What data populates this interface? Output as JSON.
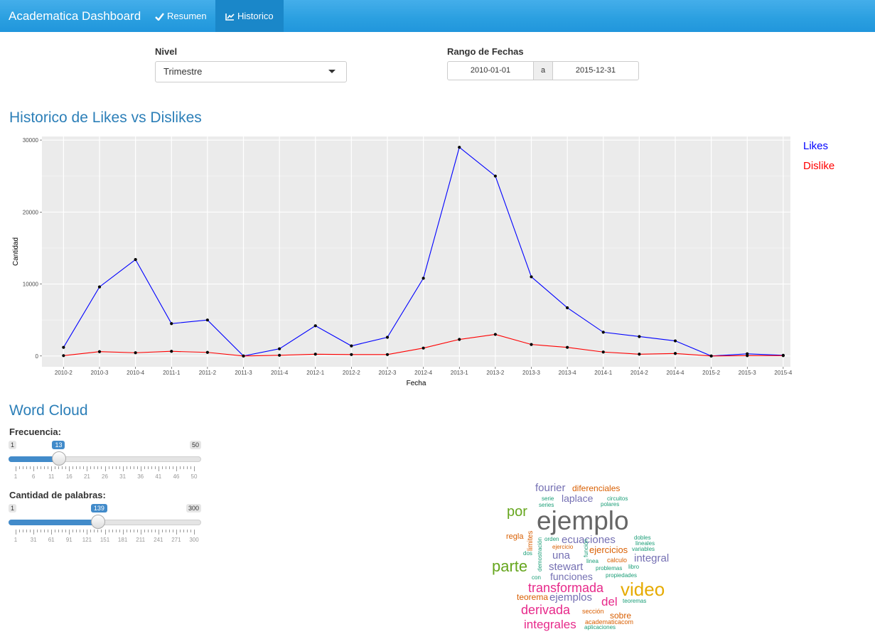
{
  "navbar": {
    "brand": "Academatica Dashboard",
    "tabs": [
      {
        "label": "Resumen"
      },
      {
        "label": "Historico"
      }
    ]
  },
  "filters": {
    "nivel_label": "Nivel",
    "nivel_value": "Trimestre",
    "rango_label": "Rango de Fechas",
    "date_start": "2010-01-01",
    "date_sep": "a",
    "date_end": "2015-12-31"
  },
  "history": {
    "title": "Historico de Likes vs Dislikes",
    "legend": [
      {
        "label": "Likes",
        "color": "#0000ff"
      },
      {
        "label": "Dislike",
        "color": "#ff0000"
      }
    ]
  },
  "chart_data": {
    "type": "line",
    "xlabel": "Fecha",
    "ylabel": "Cantidad",
    "categories": [
      "2010-2",
      "2010-3",
      "2010-4",
      "2011-1",
      "2011-2",
      "2011-3",
      "2011-4",
      "2012-1",
      "2012-2",
      "2012-3",
      "2012-4",
      "2013-1",
      "2013-2",
      "2013-3",
      "2013-4",
      "2014-1",
      "2014-2",
      "2014-4",
      "2015-2",
      "2015-3",
      "2015-4"
    ],
    "series": [
      {
        "name": "Likes",
        "color": "#0000ff",
        "values": [
          1200,
          9600,
          13400,
          4500,
          5000,
          0,
          1000,
          4200,
          1400,
          2600,
          10800,
          29000,
          25000,
          11000,
          6700,
          3300,
          2700,
          2100,
          0,
          300,
          100
        ]
      },
      {
        "name": "Dislike",
        "color": "#ff0000",
        "values": [
          50,
          600,
          450,
          650,
          500,
          0,
          100,
          250,
          200,
          200,
          1100,
          2300,
          3000,
          1600,
          1200,
          550,
          250,
          350,
          0,
          50,
          50
        ]
      }
    ],
    "ylim": [
      -1500,
      30500
    ],
    "yticks": [
      0,
      10000,
      20000,
      30000
    ]
  },
  "wordcloud": {
    "title": "Word Cloud",
    "freq": {
      "label": "Frecuencia:",
      "min": 1,
      "max": 50,
      "value": 13,
      "ticks": [
        "1",
        "6",
        "11",
        "16",
        "21",
        "26",
        "31",
        "36",
        "41",
        "46",
        "50"
      ]
    },
    "words": {
      "label": "Cantidad de palabras:",
      "min": 1,
      "max": 300,
      "value": 139,
      "ticks": [
        "1",
        "31",
        "61",
        "91",
        "121",
        "151",
        "181",
        "211",
        "241",
        "271",
        "300"
      ]
    },
    "cloud": [
      {
        "text": "ejemplo",
        "color": "#666666"
      },
      {
        "text": "video",
        "color": "#e6ab02"
      },
      {
        "text": "parte",
        "color": "#66a61e"
      },
      {
        "text": "por",
        "color": "#66a61e"
      },
      {
        "text": "transformada",
        "color": "#e7298a"
      },
      {
        "text": "derivada",
        "color": "#e7298a"
      },
      {
        "text": "integrales",
        "color": "#e7298a"
      },
      {
        "text": "del",
        "color": "#e7298a"
      },
      {
        "text": "fourier",
        "color": "#7570b3"
      },
      {
        "text": "diferenciales",
        "color": "#d95f02"
      },
      {
        "text": "laplace",
        "color": "#7570b3"
      },
      {
        "text": "ecuaciones",
        "color": "#7570b3"
      },
      {
        "text": "una",
        "color": "#7570b3"
      },
      {
        "text": "ejercicios",
        "color": "#d95f02"
      },
      {
        "text": "integral",
        "color": "#7570b3"
      },
      {
        "text": "stewart",
        "color": "#7570b3"
      },
      {
        "text": "funciones",
        "color": "#7570b3"
      },
      {
        "text": "ejemplos",
        "color": "#7570b3"
      },
      {
        "text": "teorema",
        "color": "#d95f02"
      },
      {
        "text": "sobre",
        "color": "#d95f02"
      },
      {
        "text": "regla",
        "color": "#d95f02"
      },
      {
        "text": "limites",
        "color": "#d95f02"
      },
      {
        "text": "serie",
        "color": "#1b9e77"
      },
      {
        "text": "series",
        "color": "#1b9e77"
      },
      {
        "text": "circuitos",
        "color": "#1b9e77"
      },
      {
        "text": "polares",
        "color": "#1b9e77"
      },
      {
        "text": "orden",
        "color": "#1b9e77"
      },
      {
        "text": "ejercicio",
        "color": "#d95f02"
      },
      {
        "text": "dos",
        "color": "#1b9e77"
      },
      {
        "text": "demostración",
        "color": "#1b9e77"
      },
      {
        "text": "función",
        "color": "#1b9e77"
      },
      {
        "text": "linea",
        "color": "#1b9e77"
      },
      {
        "text": "dobles",
        "color": "#1b9e77"
      },
      {
        "text": "lineales",
        "color": "#1b9e77"
      },
      {
        "text": "variables",
        "color": "#1b9e77"
      },
      {
        "text": "calculo",
        "color": "#d95f02"
      },
      {
        "text": "problemas",
        "color": "#1b9e77"
      },
      {
        "text": "libro",
        "color": "#1b9e77"
      },
      {
        "text": "propiedades",
        "color": "#1b9e77"
      },
      {
        "text": "con",
        "color": "#1b9e77"
      },
      {
        "text": "teoremas",
        "color": "#1b9e77"
      },
      {
        "text": "sección",
        "color": "#d95f02"
      },
      {
        "text": "academaticacom",
        "color": "#d95f02"
      },
      {
        "text": "aplicaciones",
        "color": "#1b9e77"
      }
    ]
  }
}
